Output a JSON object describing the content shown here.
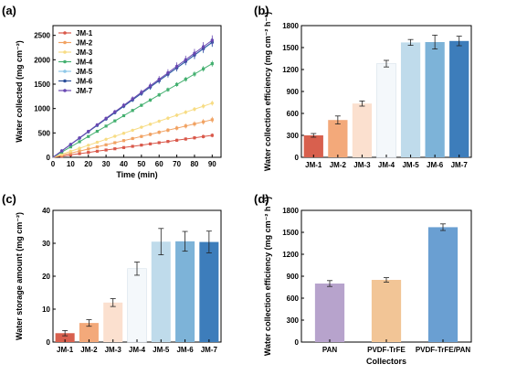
{
  "figure": {
    "panels": [
      "(a)",
      "(b)",
      "(c)",
      "(d)"
    ]
  },
  "chart_data": [
    {
      "id": "a",
      "type": "line",
      "xlabel": "Time (min)",
      "ylabel": "Water collected (mg cm⁻²)",
      "xlim": [
        0,
        95
      ],
      "ylim": [
        0,
        2700
      ],
      "xticks": [
        0,
        10,
        20,
        30,
        40,
        50,
        60,
        70,
        80,
        90
      ],
      "yticks": [
        0,
        500,
        1000,
        1500,
        2000,
        2500
      ],
      "legend_position": "top-left",
      "x": [
        0,
        5,
        10,
        15,
        20,
        25,
        30,
        35,
        40,
        45,
        50,
        55,
        60,
        65,
        70,
        75,
        80,
        85,
        90
      ],
      "series": [
        {
          "name": "JM-1",
          "color": "#d9584a",
          "final": 450,
          "final_error": 40
        },
        {
          "name": "JM-2",
          "color": "#f1a262",
          "final": 770,
          "final_error": 60
        },
        {
          "name": "JM-3",
          "color": "#f7dc84",
          "final": 1110,
          "final_error": 50
        },
        {
          "name": "JM-4",
          "color": "#44b070",
          "final": 1920,
          "final_error": 60
        },
        {
          "name": "JM-5",
          "color": "#8ec8e8",
          "final": 2350,
          "final_error": 90
        },
        {
          "name": "JM-6",
          "color": "#2c4f9a",
          "final": 2360,
          "final_error": 90
        },
        {
          "name": "JM-7",
          "color": "#6a48b2",
          "final": 2400,
          "final_error": 100
        }
      ]
    },
    {
      "id": "b",
      "type": "bar",
      "xlabel": "",
      "ylabel": "Water collection efficiency (mg cm⁻² h⁻¹)",
      "ylim": [
        0,
        1800
      ],
      "yticks": [
        0,
        300,
        600,
        900,
        1200,
        1500,
        1800
      ],
      "categories": [
        "JM-1",
        "JM-2",
        "JM-3",
        "JM-4",
        "JM-5",
        "JM-6",
        "JM-7"
      ],
      "values": [
        300,
        510,
        735,
        1280,
        1570,
        1575,
        1590
      ],
      "errors": [
        25,
        55,
        35,
        45,
        40,
        95,
        65
      ],
      "colors": [
        "#d8604e",
        "#f3a97a",
        "#fbe0cf",
        "#f4f8fb",
        "#bfdbeb",
        "#7db3d8",
        "#3d7dbb"
      ]
    },
    {
      "id": "c",
      "type": "bar",
      "xlabel": "",
      "ylabel": "Water storage amount (mg cm⁻²)",
      "ylim": [
        0,
        40
      ],
      "yticks": [
        0,
        10,
        20,
        30,
        40
      ],
      "categories": [
        "JM-1",
        "JM-2",
        "JM-3",
        "JM-4",
        "JM-5",
        "JM-6",
        "JM-7"
      ],
      "values": [
        2.7,
        5.8,
        12.0,
        22.3,
        30.5,
        30.6,
        30.4
      ],
      "errors": [
        0.8,
        1.0,
        1.2,
        2.0,
        4.0,
        3.0,
        3.3
      ],
      "colors": [
        "#d8604e",
        "#f3a97a",
        "#fbe0cf",
        "#f4f8fb",
        "#bfdbeb",
        "#7db3d8",
        "#3d7dbb"
      ]
    },
    {
      "id": "d",
      "type": "bar",
      "xlabel": "Collectors",
      "ylabel": "Water collection efficiency (mg cm⁻² h⁻¹)",
      "ylim": [
        0,
        1800
      ],
      "yticks": [
        0,
        300,
        600,
        900,
        1200,
        1500,
        1800
      ],
      "categories": [
        "PAN",
        "PVDF-TrFE",
        "PVDF-TrFE/PAN"
      ],
      "values": [
        800,
        850,
        1570
      ],
      "errors": [
        40,
        30,
        45
      ],
      "colors": [
        "#b7a3cc",
        "#f2c596",
        "#6a9fd2"
      ]
    }
  ]
}
